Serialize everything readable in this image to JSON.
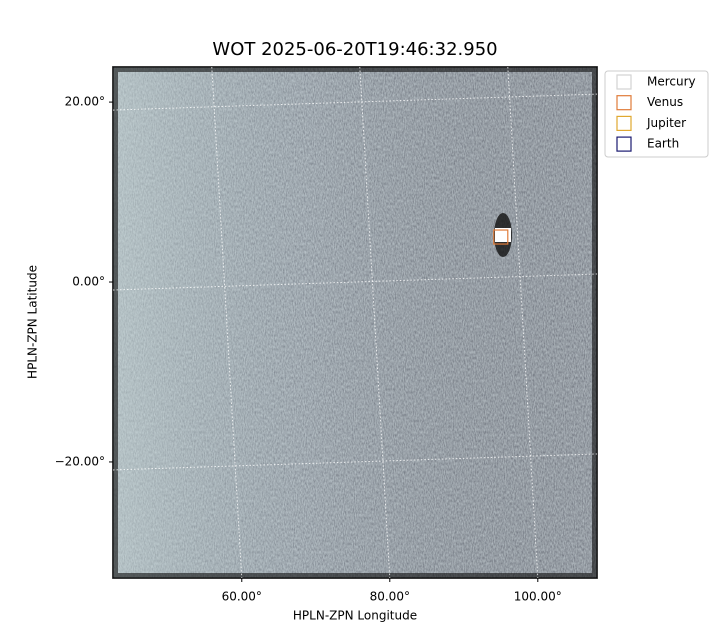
{
  "chart_data": {
    "type": "image",
    "title": "WOT 2025-06-20T19:46:32.950",
    "xlabel": "HPLN-ZPN Longitude",
    "ylabel": "HPLN-ZPN Latitude",
    "xlim": [
      42.6,
      108
    ],
    "ylim": [
      -32.9,
      23.9
    ],
    "xticks": [
      {
        "value": 60,
        "label": "60.00°"
      },
      {
        "value": 80,
        "label": "80.00°"
      },
      {
        "value": 100,
        "label": "100.00°"
      }
    ],
    "yticks": [
      {
        "value": -20,
        "label": "−20.00°"
      },
      {
        "value": 0,
        "label": "0.00°"
      },
      {
        "value": 20,
        "label": "20.00°"
      }
    ],
    "grid": true,
    "legend": "outside",
    "series": [
      {
        "name": "Mercury",
        "color": "#d3d3d3",
        "x": [],
        "values": []
      },
      {
        "name": "Venus",
        "color": "#e07b39",
        "x": [
          95
        ],
        "values": [
          5
        ]
      },
      {
        "name": "Jupiter",
        "color": "#e0a830",
        "x": [],
        "values": []
      },
      {
        "name": "Earth",
        "color": "#191970",
        "x": [],
        "values": []
      }
    ]
  }
}
